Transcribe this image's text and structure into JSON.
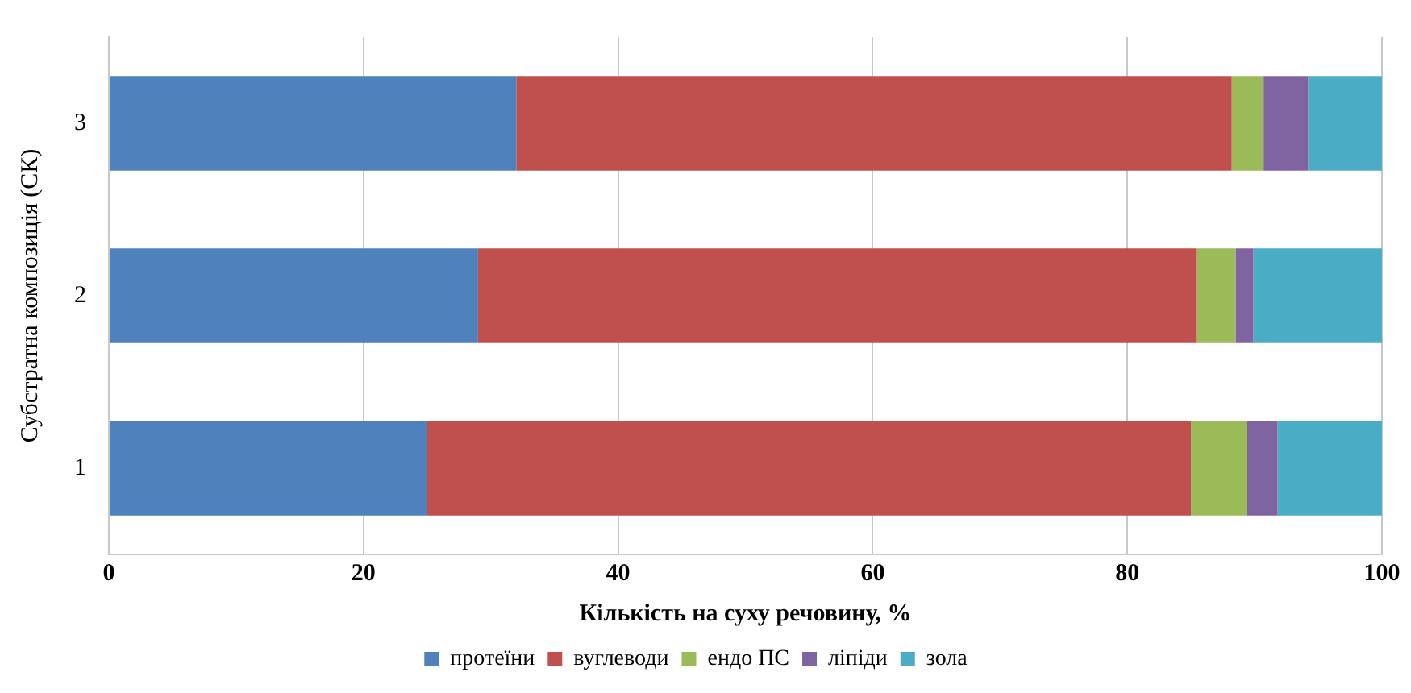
{
  "chart_data": {
    "type": "bar",
    "orientation": "horizontal",
    "stacked": true,
    "xlabel": "Кількість на суху речовину, %",
    "ylabel": "Субстратна композиція (СК)",
    "categories": [
      "3",
      "2",
      "1"
    ],
    "series": [
      {
        "name": "протеїни",
        "color": "#4f81bd",
        "values": [
          32,
          29,
          25
        ]
      },
      {
        "name": "вуглеводи",
        "color": "#c0504d",
        "values": [
          56.2,
          56.4,
          60
        ]
      },
      {
        "name": "ендо ПС",
        "color": "#9bbb59",
        "values": [
          2.5,
          3.1,
          4.4
        ]
      },
      {
        "name": "ліпіди",
        "color": "#8064a2",
        "values": [
          3.5,
          1.4,
          2.4
        ]
      },
      {
        "name": "зола",
        "color": "#4bacc6",
        "values": [
          5.8,
          10.1,
          8.2
        ]
      }
    ],
    "xlim": [
      0,
      100
    ],
    "xticks": [
      0,
      20,
      40,
      60,
      80,
      100
    ],
    "grid": "x",
    "legend": "bottom"
  }
}
